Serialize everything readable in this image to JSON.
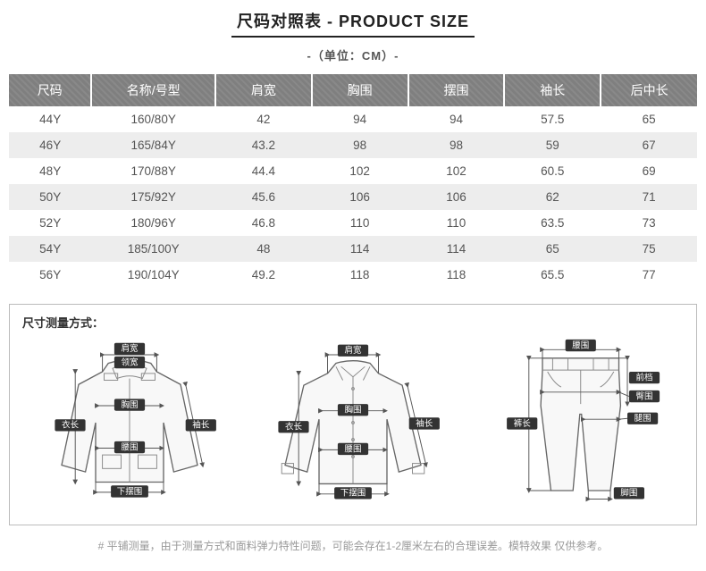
{
  "header": {
    "title": "尺码对照表 - PRODUCT SIZE",
    "unit": "-（单位：CM）-"
  },
  "table": {
    "columns": [
      "尺码",
      "名称/号型",
      "肩宽",
      "胸围",
      "摆围",
      "袖长",
      "后中长"
    ],
    "col_widths_pct": [
      12,
      18,
      14,
      14,
      14,
      14,
      14
    ],
    "header_bg": "#7f7f7f",
    "header_fg": "#ffffff",
    "row_even_bg": "#ededed",
    "row_odd_bg": "#ffffff",
    "cell_fg": "#555555",
    "rows": [
      [
        "44Y",
        "160/80Y",
        "42",
        "94",
        "94",
        "57.5",
        "65"
      ],
      [
        "46Y",
        "165/84Y",
        "43.2",
        "98",
        "98",
        "59",
        "67"
      ],
      [
        "48Y",
        "170/88Y",
        "44.4",
        "102",
        "102",
        "60.5",
        "69"
      ],
      [
        "50Y",
        "175/92Y",
        "45.6",
        "106",
        "106",
        "62",
        "71"
      ],
      [
        "52Y",
        "180/96Y",
        "46.8",
        "110",
        "110",
        "63.5",
        "73"
      ],
      [
        "54Y",
        "185/100Y",
        "48",
        "114",
        "114",
        "65",
        "75"
      ],
      [
        "56Y",
        "190/104Y",
        "49.2",
        "118",
        "118",
        "65.5",
        "77"
      ]
    ]
  },
  "measure": {
    "section_title": "尺寸测量方式：",
    "jacket_labels": {
      "shoulder": "肩宽",
      "collar": "领宽",
      "chest": "胸围",
      "length": "衣长",
      "sleeve": "袖长",
      "waist": "腰围",
      "hem": "下摆围"
    },
    "shirt_labels": {
      "shoulder": "肩宽",
      "chest": "胸围",
      "length": "衣长",
      "sleeve": "袖长",
      "waist": "腰围",
      "hem": "下摆围"
    },
    "pants_labels": {
      "waist": "腰围",
      "rise": "前档",
      "hip": "臀围",
      "thigh": "腿围",
      "length": "裤长",
      "leg_open": "脚围"
    },
    "colors": {
      "tag_bg": "#333333",
      "tag_fg": "#ffffff",
      "garment_fill": "#f8f8f8",
      "garment_stroke": "#666666",
      "dim_stroke": "#555555"
    }
  },
  "footnote": "# 平铺测量，由于测量方式和面料弹力特性问题，可能会存在1-2厘米左右的合理误差。模特效果 仅供参考。"
}
